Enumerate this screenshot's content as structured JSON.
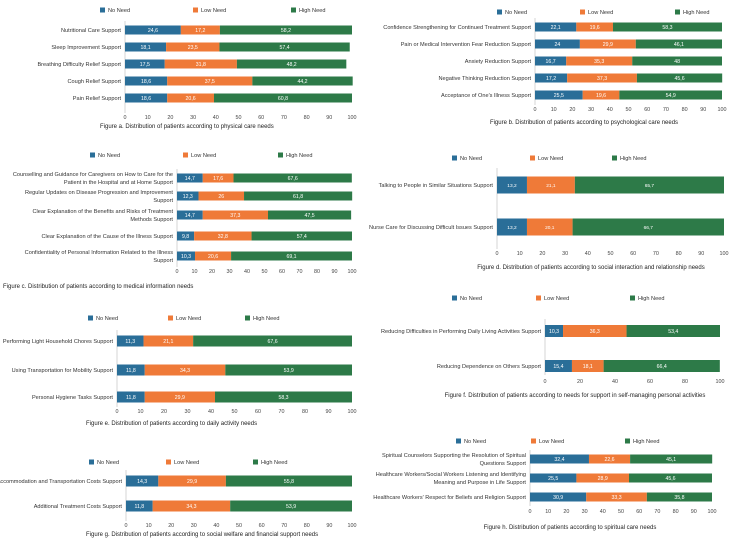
{
  "colors": {
    "no_need": "#2a6e98",
    "low_need": "#ef7a38",
    "high_need": "#2d7a48",
    "axis": "#999999"
  },
  "chart_data": [
    {
      "type": "bar",
      "stacked": true,
      "orientation": "horizontal",
      "caption": "Figure a. Distribution of patients according to physical care needs",
      "legend": [
        "No Need",
        "Low Need",
        "High Need"
      ],
      "xlim": [
        0,
        100
      ],
      "xticks": [
        "0",
        "10",
        "20",
        "30",
        "40",
        "50",
        "60",
        "70",
        "80",
        "90",
        "100"
      ],
      "categories": [
        [
          "Nutritional Care Support"
        ],
        [
          "Sleep Improvement Support"
        ],
        [
          "Breathing Difficulty Relief Support"
        ],
        [
          "Cough Relief Support"
        ],
        [
          "Pain Relief Support"
        ]
      ],
      "series": [
        {
          "name": "No Need",
          "values": [
            24.6,
            18.1,
            17.5,
            18.6,
            18.6
          ],
          "labels": [
            "24,6",
            "18,1",
            "17,5",
            "18,6",
            "18,6"
          ]
        },
        {
          "name": "Low Need",
          "values": [
            17.2,
            23.5,
            31.8,
            37.5,
            20.6
          ],
          "labels": [
            "17,2",
            "23,5",
            "31,8",
            "37,5",
            "20,6"
          ]
        },
        {
          "name": "High Need",
          "values": [
            58.2,
            57.4,
            48.2,
            44.2,
            60.8
          ],
          "labels": [
            "58,2",
            "57,4",
            "48,2",
            "44,2",
            "60,8"
          ]
        }
      ]
    },
    {
      "type": "bar",
      "stacked": true,
      "orientation": "horizontal",
      "caption": "Figure b. Distribution of patients according to psychological care needs",
      "legend": [
        "No Need",
        "Low Need",
        "High Need"
      ],
      "xlim": [
        0,
        100
      ],
      "xticks": [
        "0",
        "10",
        "20",
        "30",
        "40",
        "50",
        "60",
        "70",
        "80",
        "90",
        "100"
      ],
      "categories": [
        [
          "Confidence Strengthening for Continued Treatment Support"
        ],
        [
          "Pain or Medical Intervention Fear Reduction Support"
        ],
        [
          "Anxiety Reduction Support"
        ],
        [
          "Negative Thinking Reduction Support"
        ],
        [
          "Acceptance of One's Illness Support"
        ]
      ],
      "series": [
        {
          "name": "No Need",
          "values": [
            22.1,
            24.0,
            16.7,
            17.2,
            25.5
          ],
          "labels": [
            "22,1",
            "24",
            "16,7",
            "17,2",
            "25,5"
          ]
        },
        {
          "name": "Low Need",
          "values": [
            19.6,
            29.9,
            35.3,
            37.3,
            19.6
          ],
          "labels": [
            "19,6",
            "29,9",
            "35,3",
            "37,3",
            "19,6"
          ]
        },
        {
          "name": "High Need",
          "values": [
            58.3,
            46.1,
            48.0,
            45.6,
            54.9
          ],
          "labels": [
            "58,3",
            "46,1",
            "48",
            "45,6",
            "54,9"
          ]
        }
      ]
    },
    {
      "type": "bar",
      "stacked": true,
      "orientation": "horizontal",
      "caption": "Figure c. Distribution of patients according to medical information needs",
      "legend": [
        "No Need",
        "Low Need",
        "High Need"
      ],
      "xlim": [
        0,
        100
      ],
      "xticks": [
        "0",
        "10",
        "20",
        "30",
        "40",
        "50",
        "60",
        "70",
        "80",
        "90",
        "100"
      ],
      "categories": [
        [
          "Counselling and Guidance for Caregivers on How to Care for the",
          "Patient in the Hospital and at Home Support"
        ],
        [
          "Regular Updates on Disease Progression and Improvement",
          "Support"
        ],
        [
          "Clear Explanation of the Benefits and Risks of Treatment",
          "Methods Support"
        ],
        [
          "Clear Explanation of the Cause of the Illness Support"
        ],
        [
          "Confidentiality of Personal Information Related to the Illness",
          "Support"
        ]
      ],
      "series": [
        {
          "name": "No Need",
          "values": [
            14.7,
            12.3,
            14.7,
            9.8,
            10.3
          ],
          "labels": [
            "14,7",
            "12,3",
            "14,7",
            "9,8",
            "10,3"
          ]
        },
        {
          "name": "Low Need",
          "values": [
            17.6,
            26.0,
            37.3,
            32.8,
            20.6
          ],
          "labels": [
            "17,6",
            "26",
            "37,3",
            "32,8",
            "20,6"
          ]
        },
        {
          "name": "High Need",
          "values": [
            67.6,
            61.8,
            47.5,
            57.4,
            69.1
          ],
          "labels": [
            "67,6",
            "61,8",
            "47,5",
            "57,4",
            "69,1"
          ]
        }
      ]
    },
    {
      "type": "bar",
      "stacked": true,
      "orientation": "horizontal",
      "caption": "Figure d. Distribution of patients according to social interaction and relationship needs",
      "legend": [
        "No Need",
        "Low Need",
        "High Need"
      ],
      "xlim": [
        0,
        100
      ],
      "xticks": [
        "0",
        "10",
        "20",
        "30",
        "40",
        "50",
        "60",
        "70",
        "80",
        "90",
        "100"
      ],
      "categories": [
        [
          "Talking to People in Similar Situations Support"
        ],
        [
          "Nurse Care for Discussing Difficult Issues Support"
        ]
      ],
      "series": [
        {
          "name": "No Need",
          "values": [
            13.2,
            13.2
          ],
          "labels": [
            "13,2",
            "13,2"
          ]
        },
        {
          "name": "Low Need",
          "values": [
            21.1,
            20.1
          ],
          "labels": [
            "21,1",
            "20,1"
          ]
        },
        {
          "name": "High Need",
          "values": [
            65.7,
            66.7
          ],
          "labels": [
            "65,7",
            "66,7"
          ]
        }
      ]
    },
    {
      "type": "bar",
      "stacked": true,
      "orientation": "horizontal",
      "caption": "Figure e. Distribution of patients according to daily activity needs",
      "legend": [
        "No Need",
        "Low Need",
        "High Need"
      ],
      "xlim": [
        0,
        100
      ],
      "xticks": [
        "0",
        "10",
        "20",
        "30",
        "40",
        "50",
        "60",
        "70",
        "80",
        "90",
        "100"
      ],
      "categories": [
        [
          "Performing Light Household Chores Support"
        ],
        [
          "Using Transportation for Mobility Support"
        ],
        [
          "Personal Hygiene Tasks Support"
        ]
      ],
      "series": [
        {
          "name": "No Need",
          "values": [
            11.3,
            11.8,
            11.8
          ],
          "labels": [
            "11,3",
            "11,8",
            "11,8"
          ]
        },
        {
          "name": "Low Need",
          "values": [
            21.1,
            34.3,
            29.9
          ],
          "labels": [
            "21,1",
            "34,3",
            "29,9"
          ]
        },
        {
          "name": "High Need",
          "values": [
            67.6,
            53.9,
            58.3
          ],
          "labels": [
            "67,6",
            "53,9",
            "58,3"
          ]
        }
      ]
    },
    {
      "type": "bar",
      "stacked": true,
      "orientation": "horizontal",
      "caption": "Figure f. Distribution of patients according to needs for support in self-managing personal activities",
      "legend": [
        "No Need",
        "Low Need",
        "High Need"
      ],
      "xlim": [
        0,
        100
      ],
      "xticks": [
        "0",
        "20",
        "40",
        "60",
        "80",
        "100"
      ],
      "categories": [
        [
          "Reducing Difficulties in Performing Daily Living Activities Support"
        ],
        [
          "Reducing Dependence on Others Support"
        ]
      ],
      "series": [
        {
          "name": "No Need",
          "values": [
            10.3,
            15.4
          ],
          "labels": [
            "10,3",
            "15,4"
          ]
        },
        {
          "name": "Low Need",
          "values": [
            36.3,
            18.1
          ],
          "labels": [
            "36,3",
            "18,1"
          ]
        },
        {
          "name": "High Need",
          "values": [
            53.4,
            66.4
          ],
          "labels": [
            "53,4",
            "66,4"
          ]
        }
      ]
    },
    {
      "type": "bar",
      "stacked": true,
      "orientation": "horizontal",
      "caption": "Figure g. Distribution of patients according to social welfare and financial support needs",
      "legend": [
        "No Need",
        "Low Need",
        "High Need"
      ],
      "xlim": [
        0,
        100
      ],
      "xticks": [
        "0",
        "10",
        "20",
        "30",
        "40",
        "50",
        "60",
        "70",
        "80",
        "90",
        "100"
      ],
      "categories": [
        [
          "Accommodation and Transportation Costs Support"
        ],
        [
          "Additional Treatment Costs Support"
        ]
      ],
      "series": [
        {
          "name": "No Need",
          "values": [
            14.3,
            11.8
          ],
          "labels": [
            "14,3",
            "11,8"
          ]
        },
        {
          "name": "Low Need",
          "values": [
            29.9,
            34.3
          ],
          "labels": [
            "29,9",
            "34,3"
          ]
        },
        {
          "name": "High Need",
          "values": [
            55.8,
            53.9
          ],
          "labels": [
            "55,8",
            "53,9"
          ]
        }
      ]
    },
    {
      "type": "bar",
      "stacked": true,
      "orientation": "horizontal",
      "caption": "Figure h. Distribution of patients according to spiritual care needs",
      "legend": [
        "No Need",
        "Low Need",
        "High Need"
      ],
      "xlim": [
        0,
        100
      ],
      "xticks": [
        "0",
        "10",
        "20",
        "30",
        "40",
        "50",
        "60",
        "70",
        "80",
        "90",
        "100"
      ],
      "categories": [
        [
          "Spiritual Counselors Supporting the Resolution of Spiritual",
          "Questions Support"
        ],
        [
          "Healthcare Workers/Social Workers Listening and Identifying",
          "Meaning and Purpose in Life Support"
        ],
        [
          "Healthcare Workers' Respect for Beliefs and Religion Support"
        ]
      ],
      "series": [
        {
          "name": "No Need",
          "values": [
            32.4,
            25.5,
            30.9
          ],
          "labels": [
            "32,4",
            "25,5",
            "30,9"
          ]
        },
        {
          "name": "Low Need",
          "values": [
            22.6,
            28.9,
            33.3
          ],
          "labels": [
            "22,6",
            "28,9",
            "33,3"
          ]
        },
        {
          "name": "High Need",
          "values": [
            45.1,
            45.6,
            35.8
          ],
          "labels": [
            "45,1",
            "45,6",
            "35,8"
          ]
        }
      ]
    }
  ]
}
